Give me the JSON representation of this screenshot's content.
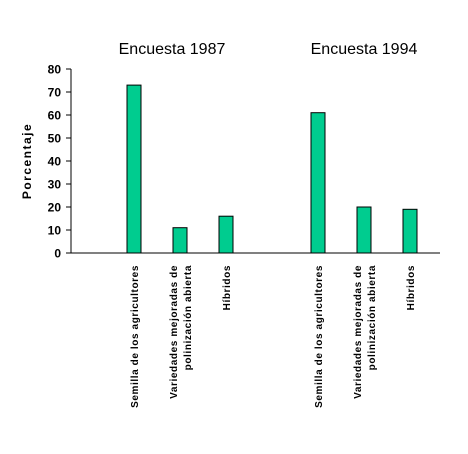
{
  "chart_data": {
    "type": "bar",
    "ylabel": "Porcentaje",
    "ylim": [
      0,
      80
    ],
    "yticks": [
      0,
      10,
      20,
      30,
      40,
      50,
      60,
      70,
      80
    ],
    "grid": false,
    "bar_color": "#00cc8f",
    "groups": [
      {
        "title": "Encuesta 1987",
        "categories": [
          [
            "Semilla de los agricultores"
          ],
          [
            "Variedades mejoradas de",
            "polinización abierta"
          ],
          [
            "Híbridos"
          ]
        ],
        "values": [
          73,
          11,
          16
        ]
      },
      {
        "title": "Encuesta 1994",
        "categories": [
          [
            "Semilla de los agricultores"
          ],
          [
            "Variedades mejoradas de",
            "polinización abierta"
          ],
          [
            "Híbridos"
          ]
        ],
        "values": [
          61,
          20,
          19
        ]
      }
    ]
  }
}
